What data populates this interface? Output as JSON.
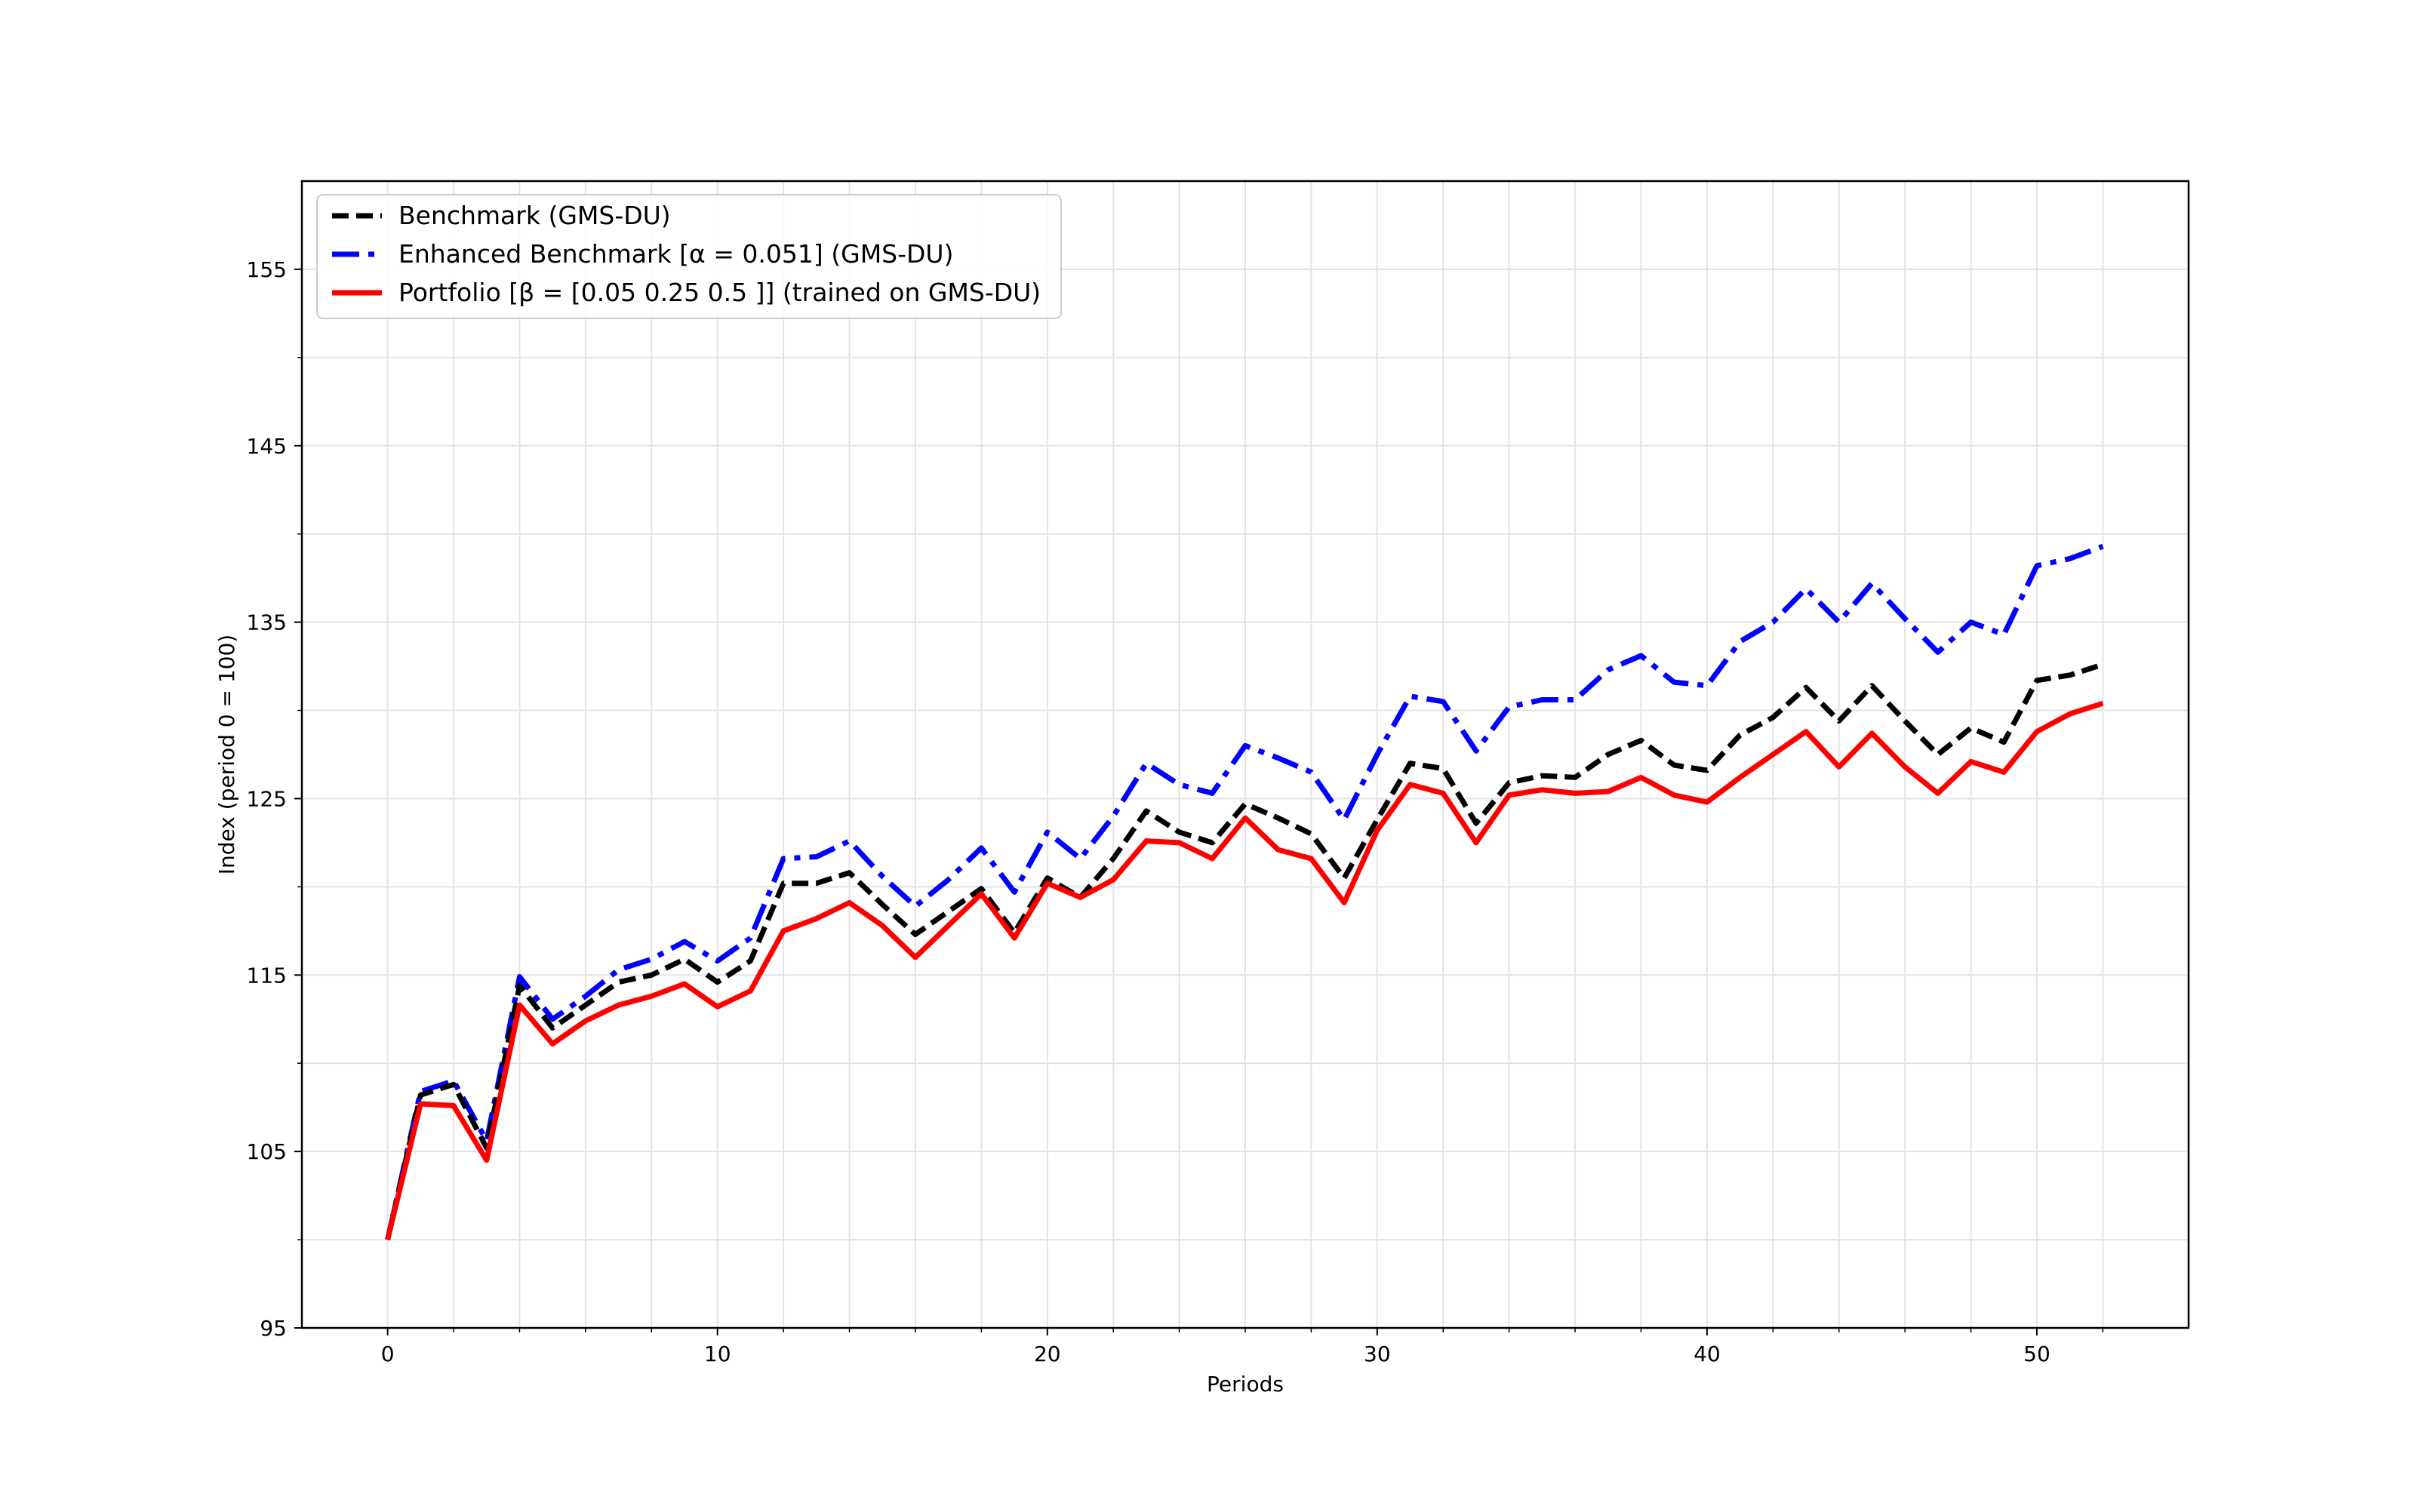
{
  "chart_data": {
    "type": "line",
    "xlabel": "Periods",
    "ylabel": "Index (period 0 = 100)",
    "xlim": [
      -2.6,
      54.6
    ],
    "ylim": [
      95,
      160
    ],
    "x_major_ticks": [
      0,
      10,
      20,
      30,
      40,
      50
    ],
    "x_minor_ticks": [
      2,
      4,
      6,
      8,
      12,
      14,
      16,
      18,
      22,
      24,
      26,
      28,
      32,
      34,
      36,
      38,
      42,
      44,
      46,
      48,
      52
    ],
    "y_major_ticks": [
      95,
      105,
      115,
      125,
      135,
      145,
      155
    ],
    "y_minor_ticks": [
      100,
      110,
      120,
      130,
      140,
      150
    ],
    "x_tick_labels": [
      "0",
      "10",
      "20",
      "30",
      "40",
      "50"
    ],
    "y_tick_labels": [
      "95",
      "105",
      "115",
      "125",
      "135",
      "145",
      "155"
    ],
    "grid": true,
    "legend_position": "top-left",
    "x": [
      0,
      1,
      2,
      3,
      4,
      5,
      6,
      7,
      8,
      9,
      10,
      11,
      12,
      13,
      14,
      15,
      16,
      17,
      18,
      19,
      20,
      21,
      22,
      23,
      24,
      25,
      26,
      27,
      28,
      29,
      30,
      31,
      32,
      33,
      34,
      35,
      36,
      37,
      38,
      39,
      40,
      41,
      42,
      43,
      44,
      45,
      46,
      47,
      48,
      49,
      50,
      51,
      52
    ],
    "series": [
      {
        "name": "Benchmark (GMS-DU)",
        "color": "#000000",
        "style": "dashed",
        "values": [
          100.0,
          108.2,
          108.8,
          105.2,
          114.4,
          112.0,
          113.3,
          114.6,
          115.0,
          115.9,
          114.6,
          115.8,
          120.2,
          120.2,
          120.8,
          119.0,
          117.3,
          118.6,
          119.9,
          117.4,
          120.5,
          119.4,
          121.6,
          124.3,
          123.1,
          122.5,
          124.7,
          123.9,
          123.0,
          120.5,
          123.8,
          127.0,
          126.7,
          123.6,
          125.9,
          126.3,
          126.2,
          127.5,
          128.3,
          126.9,
          126.6,
          128.6,
          129.6,
          131.3,
          129.4,
          131.4,
          129.4,
          127.5,
          129.0,
          128.2,
          131.7,
          132.0,
          132.6
        ]
      },
      {
        "name": "Enhanced Benchmark [α = 0.051] (GMS-DU)",
        "color": "#0000ff",
        "style": "dash-dot",
        "values": [
          100.0,
          108.4,
          109.0,
          105.6,
          114.9,
          112.5,
          113.8,
          115.3,
          115.9,
          116.9,
          115.8,
          117.1,
          121.6,
          121.7,
          122.6,
          120.6,
          118.9,
          120.4,
          122.2,
          119.7,
          123.1,
          121.6,
          124.0,
          127.0,
          125.8,
          125.3,
          128.0,
          127.3,
          126.5,
          123.8,
          127.5,
          130.8,
          130.5,
          127.7,
          130.2,
          130.6,
          130.6,
          132.3,
          133.1,
          131.6,
          131.4,
          133.9,
          135.0,
          136.9,
          135.0,
          137.2,
          135.2,
          133.3,
          135.0,
          134.3,
          138.2,
          138.6,
          139.3
        ]
      },
      {
        "name": "Portfolio [β = [0.05 0.25 0.5 ]] (trained on GMS-DU)",
        "color": "#ff0000",
        "style": "solid",
        "values": [
          100.0,
          107.7,
          107.6,
          104.5,
          113.3,
          111.1,
          112.4,
          113.3,
          113.8,
          114.5,
          113.2,
          114.1,
          117.5,
          118.2,
          119.1,
          117.8,
          116.0,
          117.8,
          119.6,
          117.1,
          120.2,
          119.4,
          120.4,
          122.6,
          122.5,
          121.6,
          123.9,
          122.1,
          121.6,
          119.1,
          123.2,
          125.8,
          125.3,
          122.5,
          125.2,
          125.5,
          125.3,
          125.4,
          126.2,
          125.2,
          124.8,
          126.2,
          127.5,
          128.8,
          126.8,
          128.7,
          126.8,
          125.3,
          127.1,
          126.5,
          128.8,
          129.8,
          130.4
        ]
      }
    ]
  }
}
